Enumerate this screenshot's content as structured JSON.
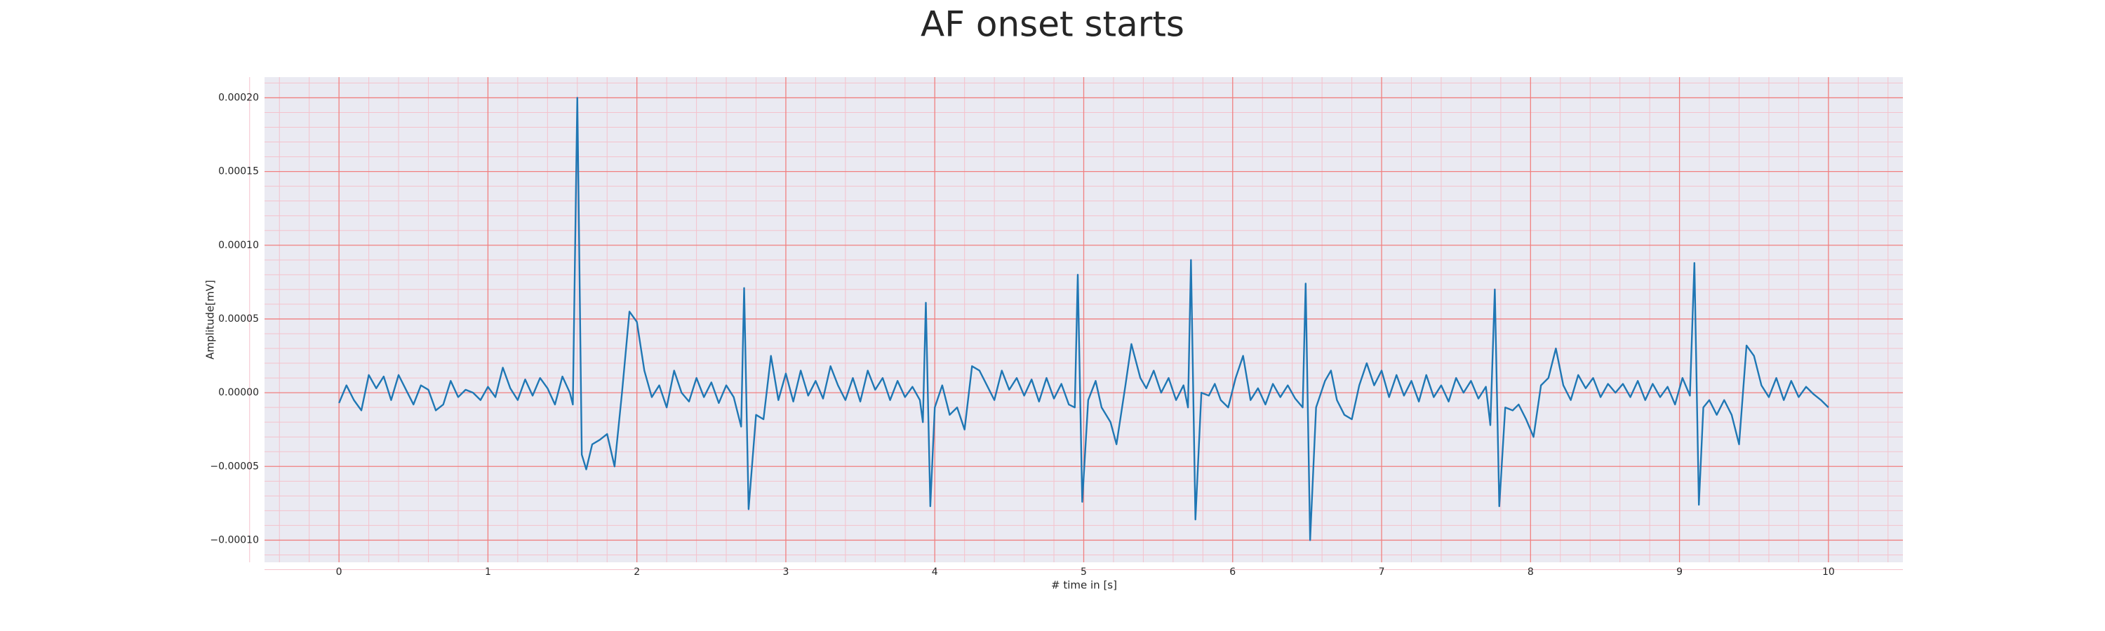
{
  "chart_data": {
    "type": "line",
    "title": "AF onset starts",
    "xlabel": "# time in [s]",
    "ylabel": "Amplitude[mV]",
    "xlim": [
      -0.5,
      10.5
    ],
    "ylim": [
      -0.000115,
      0.000214
    ],
    "xticks": [
      0,
      1,
      2,
      3,
      4,
      5,
      6,
      7,
      8,
      9,
      10
    ],
    "yticks": [
      {
        "value": -0.0001,
        "label": "−0.00010"
      },
      {
        "value": -5e-05,
        "label": "−0.00005"
      },
      {
        "value": 0,
        "label": "0.00000"
      },
      {
        "value": 5e-05,
        "label": "0.00005"
      },
      {
        "value": 0.0001,
        "label": "0.00010"
      },
      {
        "value": 0.00015,
        "label": "0.00015"
      },
      {
        "value": 0.0002,
        "label": "0.00020"
      }
    ],
    "grid": true,
    "grid_color": "#f08080",
    "minor_grid": true,
    "minor_divisions": 5,
    "minor_grid_color": "#f4c2cc",
    "background": "#eaeaf2",
    "series": [
      {
        "color": "#1f77b4",
        "x": [
          0,
          0.05,
          0.1,
          0.15,
          0.2,
          0.25,
          0.3,
          0.35,
          0.4,
          0.45,
          0.5,
          0.55,
          0.6,
          0.65,
          0.7,
          0.75,
          0.8,
          0.85,
          0.9,
          0.95,
          1.0,
          1.05,
          1.1,
          1.15,
          1.2,
          1.25,
          1.3,
          1.35,
          1.4,
          1.45,
          1.5,
          1.55,
          1.57,
          1.6,
          1.63,
          1.66,
          1.7,
          1.75,
          1.8,
          1.85,
          1.9,
          1.95,
          2.0,
          2.05,
          2.1,
          2.15,
          2.2,
          2.25,
          2.3,
          2.35,
          2.4,
          2.45,
          2.5,
          2.55,
          2.6,
          2.65,
          2.7,
          2.72,
          2.75,
          2.8,
          2.85,
          2.9,
          2.95,
          3.0,
          3.05,
          3.1,
          3.15,
          3.2,
          3.25,
          3.3,
          3.35,
          3.4,
          3.45,
          3.5,
          3.55,
          3.6,
          3.65,
          3.7,
          3.75,
          3.8,
          3.85,
          3.9,
          3.92,
          3.94,
          3.97,
          4.0,
          4.05,
          4.1,
          4.15,
          4.2,
          4.25,
          4.3,
          4.35,
          4.4,
          4.45,
          4.5,
          4.55,
          4.6,
          4.65,
          4.7,
          4.75,
          4.8,
          4.85,
          4.9,
          4.94,
          4.96,
          4.99,
          5.03,
          5.08,
          5.12,
          5.18,
          5.22,
          5.28,
          5.32,
          5.38,
          5.42,
          5.47,
          5.52,
          5.57,
          5.62,
          5.67,
          5.7,
          5.72,
          5.75,
          5.79,
          5.84,
          5.88,
          5.92,
          5.97,
          6.02,
          6.07,
          6.12,
          6.17,
          6.22,
          6.27,
          6.32,
          6.37,
          6.42,
          6.47,
          6.49,
          6.52,
          6.56,
          6.62,
          6.66,
          6.7,
          6.75,
          6.8,
          6.85,
          6.9,
          6.95,
          7.0,
          7.05,
          7.1,
          7.15,
          7.2,
          7.25,
          7.3,
          7.35,
          7.4,
          7.45,
          7.5,
          7.55,
          7.6,
          7.65,
          7.7,
          7.73,
          7.76,
          7.79,
          7.83,
          7.88,
          7.92,
          7.97,
          8.02,
          8.07,
          8.12,
          8.17,
          8.22,
          8.27,
          8.32,
          8.37,
          8.42,
          8.47,
          8.52,
          8.57,
          8.62,
          8.67,
          8.72,
          8.77,
          8.82,
          8.87,
          8.92,
          8.97,
          9.02,
          9.07,
          9.1,
          9.13,
          9.16,
          9.2,
          9.25,
          9.3,
          9.35,
          9.4,
          9.45,
          9.5,
          9.55,
          9.6,
          9.65,
          9.7,
          9.75,
          9.8,
          9.85,
          9.9,
          9.95,
          10.0
        ],
        "values": [
          -7e-06,
          5e-06,
          -5e-06,
          -1.2e-05,
          1.2e-05,
          3e-06,
          1.1e-05,
          -5e-06,
          1.2e-05,
          2e-06,
          -8e-06,
          5e-06,
          2e-06,
          -1.2e-05,
          -8e-06,
          8e-06,
          -3e-06,
          2e-06,
          0,
          -5e-06,
          4e-06,
          -3e-06,
          1.7e-05,
          3e-06,
          -5e-06,
          9e-06,
          -2e-06,
          1e-05,
          3e-06,
          -8e-06,
          1.1e-05,
          0,
          -8e-06,
          0.0002,
          -4.2e-05,
          -5.2e-05,
          -3.5e-05,
          -3.2e-05,
          -2.8e-05,
          -5e-05,
          0,
          5.5e-05,
          4.8e-05,
          1.5e-05,
          -3e-06,
          5e-06,
          -1e-05,
          1.5e-05,
          0,
          -6e-06,
          1e-05,
          -3e-06,
          7e-06,
          -7e-06,
          5e-06,
          -3e-06,
          -2.3e-05,
          7.1e-05,
          -7.9e-05,
          -1.5e-05,
          -1.8e-05,
          2.5e-05,
          -5e-06,
          1.3e-05,
          -6e-06,
          1.5e-05,
          -2e-06,
          8e-06,
          -4e-06,
          1.8e-05,
          5e-06,
          -5e-06,
          1e-05,
          -6e-06,
          1.5e-05,
          2e-06,
          1e-05,
          -5e-06,
          8e-06,
          -3e-06,
          4e-06,
          -5e-06,
          -2e-05,
          6.1e-05,
          -7.7e-05,
          -1e-05,
          5e-06,
          -1.5e-05,
          -1e-05,
          -2.5e-05,
          1.8e-05,
          1.5e-05,
          5e-06,
          -5e-06,
          1.5e-05,
          2e-06,
          1e-05,
          -2e-06,
          9e-06,
          -6e-06,
          1e-05,
          -4e-06,
          6e-06,
          -8e-06,
          -1e-05,
          8e-05,
          -7.4e-05,
          -5e-06,
          8e-06,
          -1e-05,
          -2e-05,
          -3.5e-05,
          5e-06,
          3.3e-05,
          1e-05,
          3e-06,
          1.5e-05,
          0,
          1e-05,
          -5e-06,
          5e-06,
          -1e-05,
          9e-05,
          -8.6e-05,
          0,
          -2e-06,
          6e-06,
          -5e-06,
          -1e-05,
          1e-05,
          2.5e-05,
          -5e-06,
          3e-06,
          -8e-06,
          6e-06,
          -3e-06,
          5e-06,
          -4e-06,
          -1e-05,
          7.4e-05,
          -0.0001,
          -1e-05,
          8e-06,
          1.5e-05,
          -5e-06,
          -1.5e-05,
          -1.8e-05,
          5e-06,
          2e-05,
          5e-06,
          1.5e-05,
          -3e-06,
          1.2e-05,
          -2e-06,
          8e-06,
          -6e-06,
          1.2e-05,
          -3e-06,
          5e-06,
          -6e-06,
          1e-05,
          0,
          8e-06,
          -4e-06,
          4e-06,
          -2.2e-05,
          7e-05,
          -7.7e-05,
          -1e-05,
          -1.2e-05,
          -8e-06,
          -1.8e-05,
          -3e-05,
          5e-06,
          1e-05,
          3e-05,
          5e-06,
          -5e-06,
          1.2e-05,
          3e-06,
          1e-05,
          -3e-06,
          6e-06,
          0,
          6e-06,
          -3e-06,
          8e-06,
          -5e-06,
          6e-06,
          -3e-06,
          4e-06,
          -8e-06,
          1e-05,
          -2e-06,
          8.8e-05,
          -7.6e-05,
          -1e-05,
          -5e-06,
          -1.5e-05,
          -5e-06,
          -1.5e-05,
          -3.5e-05,
          3.2e-05,
          2.5e-05,
          5e-06,
          -3e-06,
          1e-05,
          -5e-06,
          8e-06,
          -3e-06,
          4e-06,
          -1e-06,
          -5e-06,
          -1e-05
        ]
      }
    ]
  }
}
